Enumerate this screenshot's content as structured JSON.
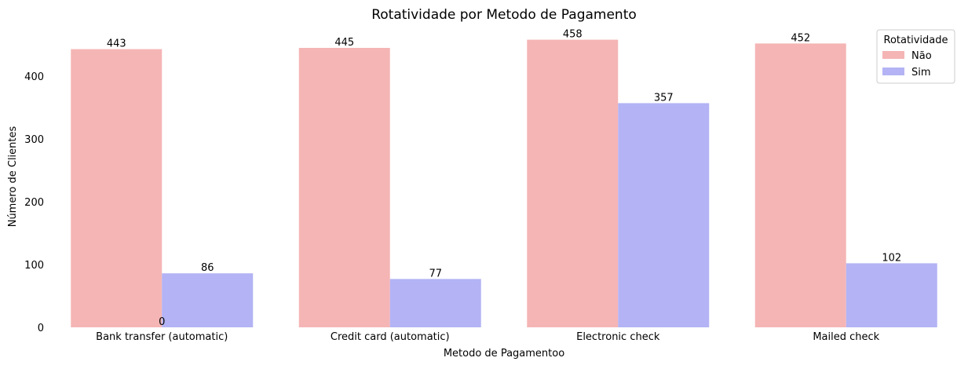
{
  "chart_data": {
    "type": "bar",
    "title": "Rotatividade por Metodo de Pagamento",
    "xlabel": "Metodo de Pagamentoo",
    "ylabel": "Número de Clientes",
    "categories": [
      "Bank transfer (automatic)",
      "Credit card (automatic)",
      "Electronic check",
      "Mailed check"
    ],
    "series": [
      {
        "name": "Não",
        "values": [
          443,
          445,
          458,
          452
        ],
        "color": "#f5b5b5"
      },
      {
        "name": "Sim",
        "values": [
          86,
          77,
          357,
          102
        ],
        "color": "#b3b3f5"
      }
    ],
    "extra_labels": [
      {
        "category_index": 0,
        "text": "0"
      }
    ],
    "yticks": [
      0,
      100,
      200,
      300,
      400
    ],
    "ylim": [
      0,
      480
    ],
    "legend": {
      "title": "Rotatividade",
      "position": "top-right"
    },
    "grid": false
  }
}
